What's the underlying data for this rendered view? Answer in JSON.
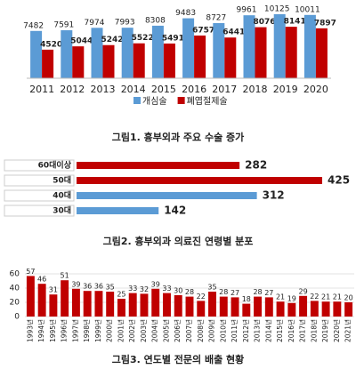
{
  "chart_data": [
    {
      "type": "bar",
      "title": "그림1. 흉부외과 주요 수술 증가",
      "categories": [
        "2011",
        "2012",
        "2013",
        "2014",
        "2015",
        "2016",
        "2017",
        "2018",
        "2019",
        "2020"
      ],
      "series": [
        {
          "name": "개심술",
          "color": "#5b9bd5",
          "values": [
            7482,
            7591,
            7974,
            7993,
            8308,
            9483,
            8727,
            9961,
            10125,
            10011
          ]
        },
        {
          "name": "폐엽절제술",
          "color": "#c00000",
          "values": [
            4520,
            5044,
            5242,
            5522,
            5491,
            6757,
            6441,
            8076,
            8141,
            7897
          ]
        }
      ]
    },
    {
      "type": "hbar",
      "title": "그림2. 흉부외과 의료진 연령별 분포",
      "categories": [
        "60대이상",
        "50대",
        "40대",
        "30대"
      ],
      "values": [
        282,
        425,
        312,
        142
      ],
      "colors": [
        "#c00000",
        "#c00000",
        "#5b9bd5",
        "#5b9bd5"
      ]
    },
    {
      "type": "bar",
      "title": "그림3. 연도별 전문의 배출 현황",
      "categories": [
        "1993년",
        "1994년",
        "1995년",
        "1996년",
        "1997년",
        "1998년",
        "1999년",
        "2000년",
        "2001년",
        "2002년",
        "2003년",
        "2004년",
        "2005년",
        "2006년",
        "2007년",
        "2008년",
        "2009년",
        "2010년",
        "2011년",
        "2012년",
        "2013년",
        "2014년",
        "2015년",
        "2016년",
        "2017년",
        "2018년",
        "2019년",
        "2020년",
        "2021년"
      ],
      "values": [
        57,
        46,
        31,
        51,
        39,
        36,
        36,
        35,
        25,
        33,
        32,
        39,
        33,
        30,
        28,
        22,
        35,
        28,
        27,
        18,
        28,
        27,
        21,
        19,
        29,
        22,
        21,
        21,
        20
      ],
      "color": "#c00000",
      "ylim": [
        0,
        60
      ],
      "yticks": [
        0,
        20,
        40,
        60
      ],
      "grid": true
    }
  ]
}
